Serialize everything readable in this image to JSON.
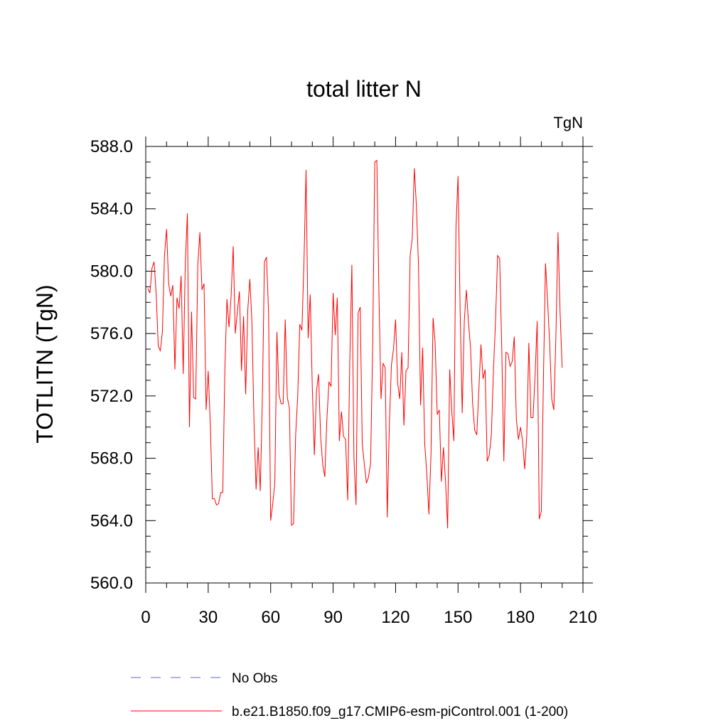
{
  "chart_data": {
    "type": "line",
    "title": "total litter N",
    "units_label": "TgN",
    "ylabel": "TOTLITN  (TgN)",
    "xlabel": "",
    "xlim": [
      0,
      210
    ],
    "ylim": [
      560,
      588
    ],
    "xticks": [
      0,
      30,
      60,
      90,
      120,
      150,
      180,
      210
    ],
    "yticks": [
      560,
      564,
      568,
      572,
      576,
      580,
      584,
      588
    ],
    "ytick_labels": [
      "560.0",
      "564.0",
      "568.0",
      "572.0",
      "576.0",
      "580.0",
      "584.0",
      "588.0"
    ],
    "legend": [
      {
        "label": "No Obs",
        "color": "#6666cc",
        "dash": true
      },
      {
        "label": "b.e21.B1850.f09_g17.CMIP6-esm-piControl.001 (1-200)",
        "color": "#ff0000",
        "dash": false
      }
    ],
    "series": [
      {
        "name": "b.e21.B1850.f09_g17.CMIP6-esm-piControl.001 (1-200)",
        "color": "#ff0000",
        "x_start": 1,
        "values": [
          578.9,
          578.6,
          580.2,
          580.6,
          578.6,
          575.2,
          574.9,
          576.1,
          581.0,
          582.7,
          579.2,
          578.4,
          579.1,
          573.7,
          578.3,
          577.6,
          579.7,
          573.4,
          580.5,
          583.7,
          570.0,
          577.4,
          571.9,
          571.8,
          580.4,
          582.5,
          578.8,
          579.2,
          571.1,
          573.6,
          570.2,
          565.4,
          565.4,
          565.0,
          565.1,
          565.8,
          565.8,
          573.7,
          578.2,
          576.4,
          578.4,
          581.6,
          576.0,
          577.4,
          578.7,
          573.6,
          577.1,
          572.1,
          577.5,
          579.5,
          576.7,
          570.3,
          566.0,
          568.7,
          565.9,
          571.7,
          580.6,
          580.9,
          577.3,
          564.0,
          565.1,
          566.4,
          576.1,
          572.1,
          571.5,
          571.5,
          576.9,
          571.9,
          571.2,
          563.7,
          563.8,
          569.5,
          572.0,
          576.6,
          576.2,
          580.6,
          586.5,
          575.7,
          578.5,
          572.5,
          568.2,
          572.3,
          573.4,
          569.4,
          567.6,
          566.8,
          570.5,
          572.9,
          572.6,
          578.6,
          575.9,
          578.3,
          569.1,
          571.0,
          569.4,
          569.2,
          565.3,
          574.2,
          580.4,
          568.0,
          565.0,
          577.3,
          577.7,
          568.9,
          567.6,
          566.4,
          566.8,
          567.7,
          575.2,
          587.0,
          587.1,
          578.6,
          571.8,
          574.1,
          573.8,
          564.2,
          570.1,
          574.0,
          575.0,
          576.9,
          572.8,
          571.8,
          574.8,
          570.1,
          573.6,
          573.8,
          581.0,
          582.1,
          586.6,
          584.2,
          580.4,
          571.4,
          575.1,
          568.9,
          567.0,
          564.4,
          568.2,
          577.0,
          575.4,
          570.8,
          571.1,
          566.5,
          568.7,
          566.5,
          563.5,
          573.7,
          571.0,
          569.1,
          582.8,
          586.1,
          577.5,
          570.9,
          576.8,
          578.8,
          576.7,
          575.1,
          571.5,
          569.8,
          569.5,
          572.4,
          575.3,
          573.1,
          573.7,
          567.8,
          568.2,
          569.5,
          573.6,
          576.8,
          581.0,
          580.8,
          575.0,
          567.8,
          574.8,
          574.7,
          573.9,
          574.2,
          575.8,
          570.5,
          569.2,
          570.0,
          569.1,
          567.3,
          569.4,
          575.4,
          570.6,
          570.6,
          573.3,
          576.8,
          564.1,
          564.6,
          573.0,
          580.5,
          578.1,
          575.4,
          571.8,
          571.1,
          575.8,
          582.5,
          577.4,
          573.8
        ]
      }
    ]
  }
}
